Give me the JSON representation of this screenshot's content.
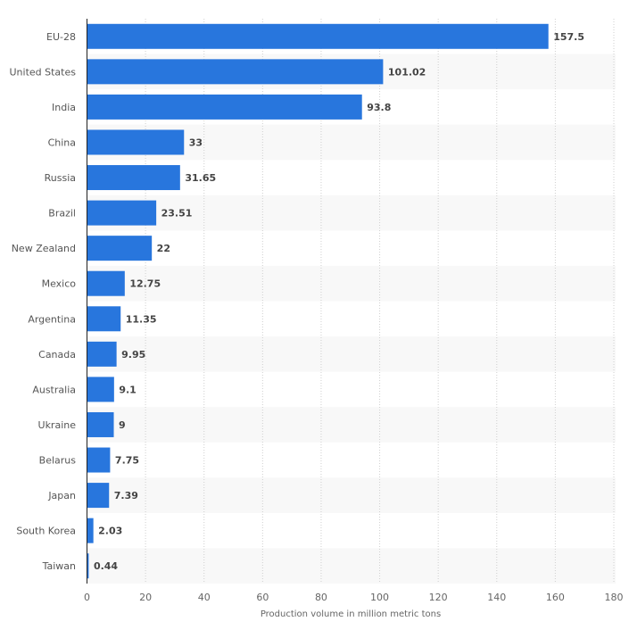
{
  "chart_data": {
    "type": "bar",
    "orientation": "horizontal",
    "categories": [
      "EU-28",
      "United States",
      "India",
      "China",
      "Russia",
      "Brazil",
      "New Zealand",
      "Mexico",
      "Argentina",
      "Canada",
      "Australia",
      "Ukraine",
      "Belarus",
      "Japan",
      "South Korea",
      "Taiwan"
    ],
    "values": [
      157.5,
      101.02,
      93.8,
      33,
      31.65,
      23.51,
      22,
      12.75,
      11.35,
      9.95,
      9.1,
      9,
      7.75,
      7.39,
      2.03,
      0.44
    ],
    "value_labels": [
      "157.5",
      "101.02",
      "93.8",
      "33",
      "31.65",
      "23.51",
      "22",
      "12.75",
      "11.35",
      "9.95",
      "9.1",
      "9",
      "7.75",
      "7.39",
      "2.03",
      "0.44"
    ],
    "xlabel": "Production volume in million metric tons",
    "ylabel": "",
    "xlim": [
      0,
      180
    ],
    "xticks": [
      "0",
      "20",
      "40",
      "60",
      "80",
      "100",
      "120",
      "140",
      "160",
      "180"
    ],
    "grid": true,
    "bar_color": "#2876dd",
    "stripe_color": "#f8f8f8"
  }
}
